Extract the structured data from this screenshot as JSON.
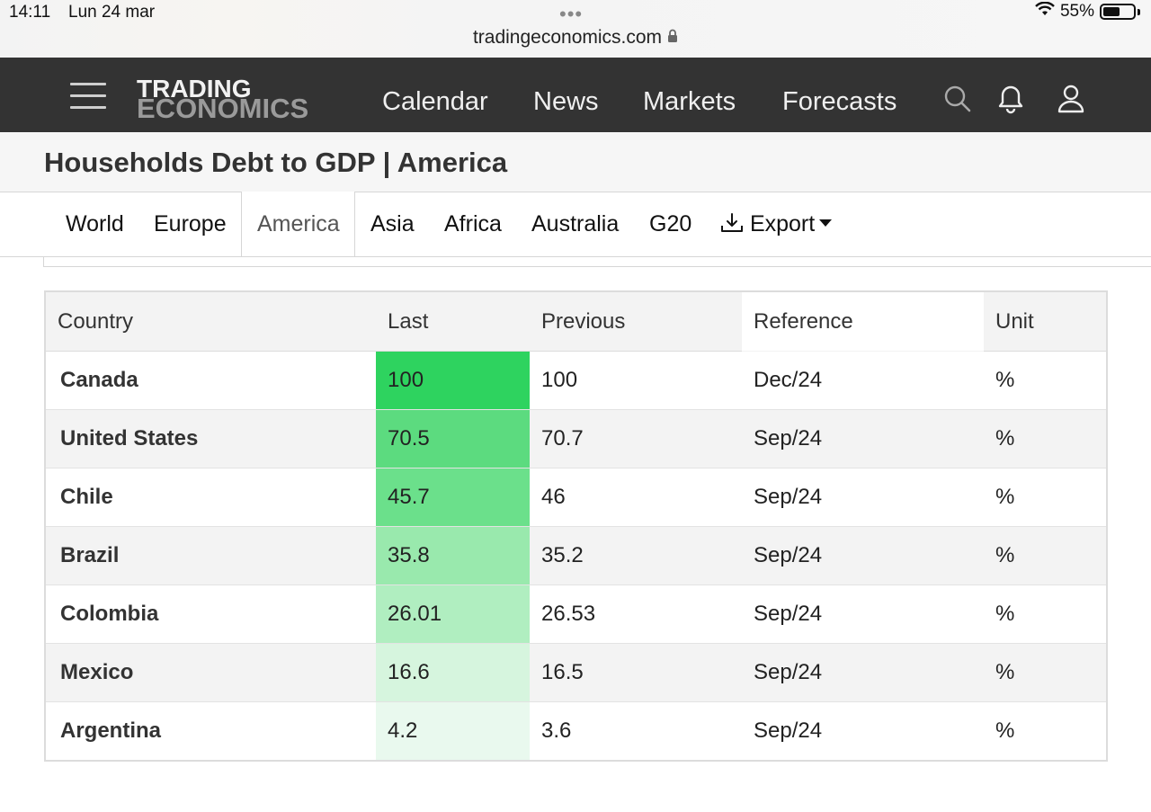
{
  "status_bar": {
    "time": "14:11",
    "date": "Lun 24 mar",
    "url": "tradingeconomics.com",
    "battery": "55%",
    "battery_level": 0.55
  },
  "navbar": {
    "logo_line1": "TRADING",
    "logo_line2": "ECONOMICS",
    "links": [
      "Calendar",
      "News",
      "Markets",
      "Forecasts"
    ],
    "icons": [
      "search-icon",
      "bell-icon",
      "user-icon"
    ]
  },
  "page": {
    "title": "Households Debt to GDP | America"
  },
  "tabs": {
    "items": [
      "World",
      "Europe",
      "America",
      "Asia",
      "Africa",
      "Australia",
      "G20"
    ],
    "active": "America",
    "export_label": "Export"
  },
  "table": {
    "headers": [
      "Country",
      "Last",
      "Previous",
      "Reference",
      "Unit"
    ],
    "rows": [
      {
        "country": "Canada",
        "last": "100",
        "previous": "100",
        "reference": "Dec/24",
        "unit": "%"
      },
      {
        "country": "United States",
        "last": "70.5",
        "previous": "70.7",
        "reference": "Sep/24",
        "unit": "%"
      },
      {
        "country": "Chile",
        "last": "45.7",
        "previous": "46",
        "reference": "Sep/24",
        "unit": "%"
      },
      {
        "country": "Brazil",
        "last": "35.8",
        "previous": "35.2",
        "reference": "Sep/24",
        "unit": "%"
      },
      {
        "country": "Colombia",
        "last": "26.01",
        "previous": "26.53",
        "reference": "Sep/24",
        "unit": "%"
      },
      {
        "country": "Mexico",
        "last": "16.6",
        "previous": "16.5",
        "reference": "Sep/24",
        "unit": "%"
      },
      {
        "country": "Argentina",
        "last": "4.2",
        "previous": "3.6",
        "reference": "Sep/24",
        "unit": "%"
      }
    ],
    "last_heat_colors": [
      "#2ed35f",
      "#5cdb7f",
      "#6be08b",
      "#99e9ad",
      "#b0eec0",
      "#d6f5de",
      "#e9f9ee"
    ]
  }
}
